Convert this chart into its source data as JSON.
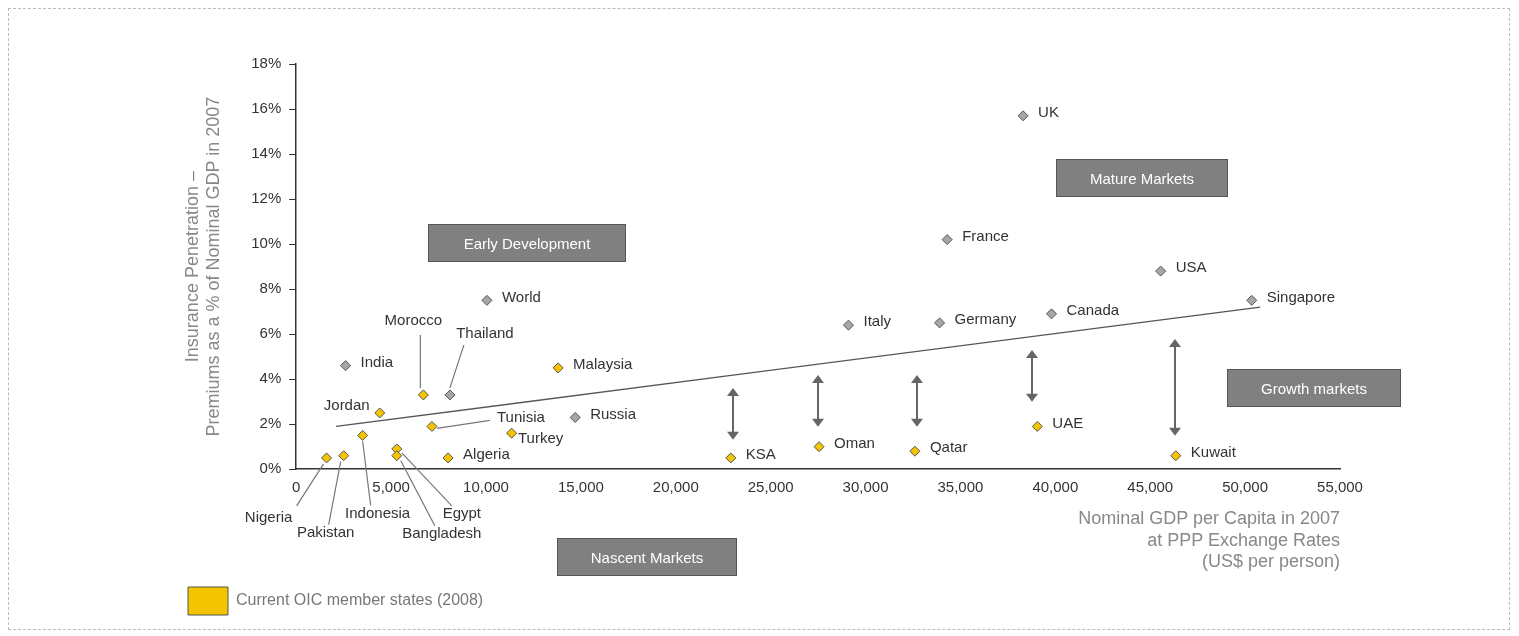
{
  "chart_data": {
    "type": "scatter",
    "xlabel": "Nominal GDP per Capita in 2007\nat PPP Exchange Rates\n(US$ per person)",
    "ylabel": "Insurance Penetration –\nPremiums as a % of Nominal GDP in 2007",
    "xlim": [
      0,
      55000
    ],
    "xticks": [
      0,
      {
        "value": 5000,
        "label": "5,000"
      },
      {
        "value": 10000,
        "label": "10,000"
      },
      {
        "value": 15000,
        "label": "15,000"
      },
      {
        "value": 20000,
        "label": "20,000"
      },
      {
        "value": 25000,
        "label": "25,000"
      },
      {
        "value": 30000,
        "label": "30,000"
      },
      {
        "value": 35000,
        "label": "35,000"
      },
      {
        "value": 40000,
        "label": "40,000"
      },
      {
        "value": 45000,
        "label": "45,000"
      },
      {
        "value": 50000,
        "label": "50,000"
      },
      {
        "value": 55000,
        "label": "55,000"
      }
    ],
    "ylim": [
      0,
      18
    ],
    "yticks": [
      {
        "value": 0,
        "label": "0%"
      },
      {
        "value": 2,
        "label": "2%"
      },
      {
        "value": 4,
        "label": "4%"
      },
      {
        "value": 6,
        "label": "6%"
      },
      {
        "value": 8,
        "label": "8%"
      },
      {
        "value": 10,
        "label": "10%"
      },
      {
        "value": 12,
        "label": "12%"
      },
      {
        "value": 14,
        "label": "14%"
      },
      {
        "value": 16,
        "label": "16%"
      },
      {
        "value": 18,
        "label": "18%"
      }
    ],
    "grid": false,
    "legend": "bottom left",
    "marker": "diamond",
    "series": [
      {
        "color": "#a6a6a6",
        "x": [
          38300,
          34300,
          45550,
          50350,
          39800,
          33900,
          29100,
          10050,
          2600,
          8100,
          14700
        ],
        "values": [
          15.7,
          10.2,
          8.8,
          7.5,
          6.9,
          6.5,
          6.4,
          7.5,
          4.6,
          3.3,
          2.3
        ]
      },
      {
        "name": "Current OIC member states (2008)",
        "color": "#f5c400",
        "x": [
          13800,
          6700,
          4400,
          7150,
          11350,
          3500,
          5300,
          5300,
          8000,
          1600,
          2500,
          22900,
          27550,
          32600,
          39050,
          46350
        ],
        "values": [
          4.5,
          3.3,
          2.5,
          1.9,
          1.6,
          1.5,
          0.9,
          0.6,
          0.5,
          0.5,
          0.6,
          0.5,
          1.0,
          0.8,
          1.9,
          0.6
        ]
      },
      {
        "type": "line",
        "marker": "none",
        "color": "#555555",
        "x": [
          2100,
          50800
        ],
        "values": [
          1.9,
          7.2
        ]
      }
    ],
    "annotations": [
      "Early Development",
      "Mature Markets",
      "Growth markets",
      "Nascent Markets",
      {
        "text": "UK",
        "x": 38300,
        "y": 15.7
      },
      {
        "text": "France",
        "x": 34300,
        "y": 10.2
      },
      {
        "text": "USA",
        "x": 45550,
        "y": 8.8
      },
      {
        "text": "Singapore",
        "x": 50350,
        "y": 7.5
      },
      {
        "text": "Canada",
        "x": 39800,
        "y": 6.9
      },
      {
        "text": "Germany",
        "x": 33900,
        "y": 6.5
      },
      {
        "text": "Italy",
        "x": 29100,
        "y": 6.4
      },
      {
        "text": "World",
        "x": 10050,
        "y": 7.5
      },
      {
        "text": "India",
        "x": 2600,
        "y": 4.6
      },
      {
        "text": "Thailand",
        "x": 8100,
        "y": 3.3
      },
      {
        "text": "Russia",
        "x": 14700,
        "y": 2.3
      },
      {
        "text": "Malaysia",
        "x": 13800,
        "y": 4.5
      },
      {
        "text": "Morocco",
        "x": 6700,
        "y": 3.3
      },
      {
        "text": "Jordan",
        "x": 4400,
        "y": 2.5
      },
      {
        "text": "Tunisia",
        "x": 7150,
        "y": 1.9
      },
      {
        "text": "Turkey",
        "x": 11350,
        "y": 1.6
      },
      {
        "text": "Indonesia",
        "x": 3500,
        "y": 1.5
      },
      {
        "text": "Egypt",
        "x": 5300,
        "y": 0.9
      },
      {
        "text": "Bangladesh",
        "x": 5300,
        "y": 0.6
      },
      {
        "text": "Algeria",
        "x": 8000,
        "y": 0.5
      },
      {
        "text": "Nigeria",
        "x": 1600,
        "y": 0.5
      },
      {
        "text": "Pakistan",
        "x": 2500,
        "y": 0.6
      },
      {
        "text": "KSA",
        "x": 22900,
        "y": 0.5
      },
      {
        "text": "Oman",
        "x": 27550,
        "y": 1.0
      },
      {
        "text": "Qatar",
        "x": 32600,
        "y": 0.8
      },
      {
        "text": "UAE",
        "x": 39050,
        "y": 1.9
      },
      {
        "text": "Kuwait",
        "x": 46350,
        "y": 0.6
      }
    ]
  }
}
